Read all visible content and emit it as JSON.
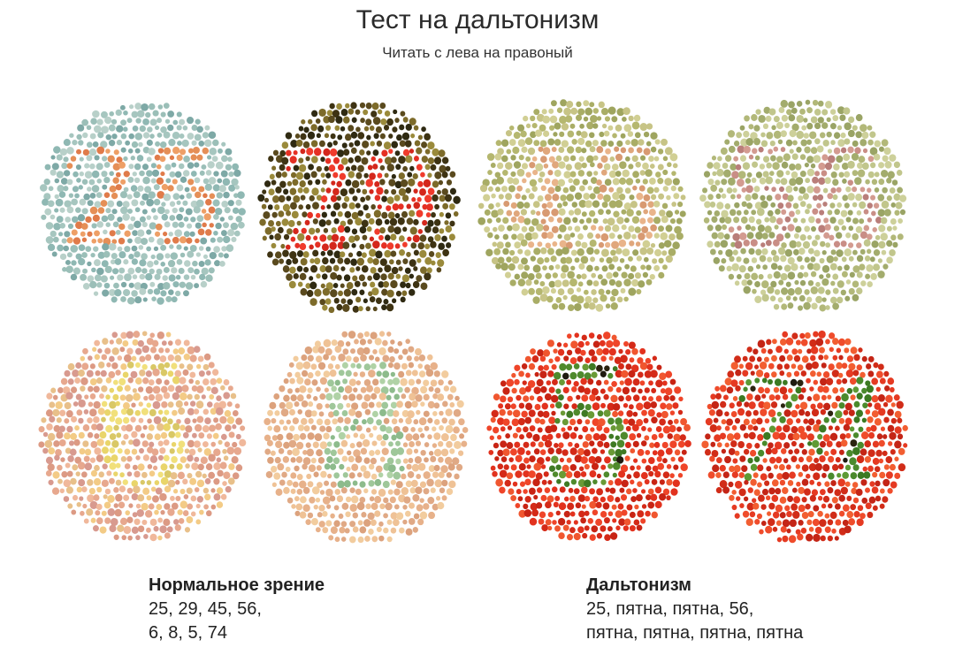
{
  "header": {
    "title": "Тест на дальтонизм",
    "subtitle": "Читать с лева на правоный"
  },
  "plates": [
    {
      "number": "25",
      "bg": [
        "#8fb8b3",
        "#a6c6bf",
        "#7ea9a6",
        "#b8d0c9",
        "#9bbfb8"
      ],
      "fg": [
        "#e58f57",
        "#e07b4a",
        "#ee9f66"
      ],
      "dark": []
    },
    {
      "number": "29",
      "bg": [
        "#5a4a1e",
        "#7d6b2a",
        "#3e3313",
        "#9a8a3b",
        "#2f2a12"
      ],
      "fg": [
        "#e53024",
        "#f03b2c",
        "#d4271c"
      ],
      "dark": []
    },
    {
      "number": "45",
      "bg": [
        "#b5b76f",
        "#c7c486",
        "#a9ad66",
        "#d1cf94",
        "#9fa55f"
      ],
      "fg": [
        "#e0a77c",
        "#d89a72",
        "#e9b48a"
      ],
      "dark": []
    },
    {
      "number": "56",
      "bg": [
        "#b2b879",
        "#c1c68c",
        "#a3ac6d",
        "#cdd09a",
        "#9aa465"
      ],
      "fg": [
        "#c98e86",
        "#b97e7a",
        "#d39b90"
      ],
      "dark": []
    },
    {
      "number": "6",
      "bg": [
        "#e7a88e",
        "#f0b89b",
        "#dc9a84",
        "#e8c08a",
        "#f3cb86",
        "#d89a8f"
      ],
      "fg": [
        "#e9d56a",
        "#f1e07b",
        "#d9c866"
      ],
      "dark": []
    },
    {
      "number": "8",
      "bg": [
        "#e7b18a",
        "#efc296",
        "#dca27d",
        "#f2cc9e",
        "#e0a985"
      ],
      "fg": [
        "#9fc79a",
        "#8dbb8c",
        "#b0d2a6"
      ],
      "dark": []
    },
    {
      "number": "5",
      "bg": [
        "#e2321e",
        "#ef4529",
        "#d42a18",
        "#f0562f",
        "#c82414"
      ],
      "fg": [
        "#4f8a2c",
        "#3f7a24",
        "#6a9a36"
      ],
      "dark": [
        "#1f1a10",
        "#2b2410"
      ]
    },
    {
      "number": "74",
      "bg": [
        "#e53a22",
        "#ef4c2b",
        "#d12c18",
        "#f25e31",
        "#c42516"
      ],
      "fg": [
        "#4a8a2c",
        "#3c7a22",
        "#5e9a34"
      ],
      "dark": [
        "#1f1a10",
        "#2b2410"
      ]
    }
  ],
  "legend_normal": {
    "heading": "Нормальное зрение",
    "line1": "25, 29, 45, 56,",
    "line2": "6, 8, 5, 74"
  },
  "legend_colorblind": {
    "heading": "Дальтонизм",
    "line1": "25, пятна, пятна, 56,",
    "line2": "пятна, пятна, пятна, пятна"
  }
}
